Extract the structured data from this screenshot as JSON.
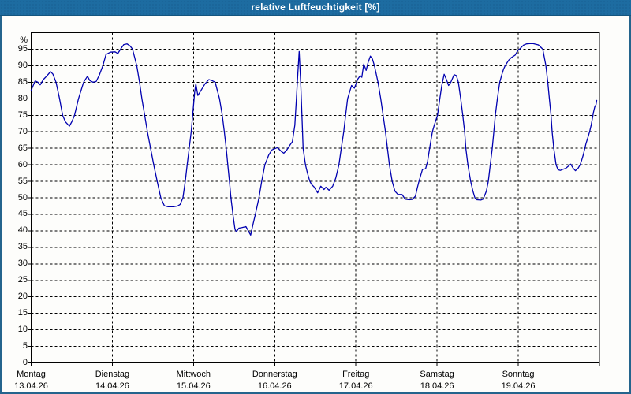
{
  "window": {
    "title": "relative Luftfeuchtigkeit [%]"
  },
  "colors": {
    "titlebar_bg": "#1d6ca1",
    "frame": "#24648d",
    "plot_bg": "#fdfdfb",
    "plot_border": "#000000",
    "grid": "#000000",
    "curve": "#0000b0",
    "label_text": "#000000",
    "title_text": "#ffffff"
  },
  "chart_data": {
    "type": "line",
    "title": "relative Luftfeuchtigkeit [%]",
    "ylabel_unit": "%",
    "ylim": [
      0,
      100
    ],
    "y_tick_step": 5,
    "y_tick_labels": [
      "0",
      "5",
      "10",
      "15",
      "20",
      "25",
      "30",
      "35",
      "40",
      "45",
      "50",
      "55",
      "60",
      "65",
      "70",
      "75",
      "80",
      "85",
      "90",
      "95"
    ],
    "x_range_days": [
      0,
      7
    ],
    "x_days": [
      {
        "name": "Montag",
        "date": "13.04.26"
      },
      {
        "name": "Dienstag",
        "date": "14.04.26"
      },
      {
        "name": "Mittwoch",
        "date": "15.04.26"
      },
      {
        "name": "Donnerstag",
        "date": "16.04.26"
      },
      {
        "name": "Freitag",
        "date": "17.04.26"
      },
      {
        "name": "Samstag",
        "date": "18.04.26"
      },
      {
        "name": "Sonntag",
        "date": "19.04.26"
      }
    ],
    "grid": "dashed",
    "legend": "none",
    "series": [
      {
        "name": "relative Luftfeuchtigkeit",
        "unit": "%",
        "color": "#0000b0",
        "points": [
          [
            0.0,
            82.5
          ],
          [
            0.049,
            85.4
          ],
          [
            0.083,
            85.0
          ],
          [
            0.112,
            84.2
          ],
          [
            0.15,
            85.8
          ],
          [
            0.189,
            86.8
          ],
          [
            0.238,
            88.2
          ],
          [
            0.267,
            87.5
          ],
          [
            0.306,
            85.0
          ],
          [
            0.35,
            80.0
          ],
          [
            0.388,
            75.0
          ],
          [
            0.422,
            73.0
          ],
          [
            0.471,
            71.7
          ],
          [
            0.5,
            73.0
          ],
          [
            0.534,
            75.0
          ],
          [
            0.583,
            80.0
          ],
          [
            0.646,
            85.0
          ],
          [
            0.694,
            86.8
          ],
          [
            0.723,
            85.5
          ],
          [
            0.762,
            85.0
          ],
          [
            0.801,
            85.2
          ],
          [
            0.84,
            87.2
          ],
          [
            0.883,
            90.0
          ],
          [
            0.922,
            93.4
          ],
          [
            0.976,
            94.1
          ],
          [
            1.034,
            94.2
          ],
          [
            1.068,
            93.7
          ],
          [
            1.102,
            95.0
          ],
          [
            1.141,
            96.4
          ],
          [
            1.18,
            96.6
          ],
          [
            1.218,
            96.0
          ],
          [
            1.248,
            95.0
          ],
          [
            1.301,
            90.0
          ],
          [
            1.335,
            85.0
          ],
          [
            1.364,
            80.0
          ],
          [
            1.398,
            75.0
          ],
          [
            1.432,
            70.0
          ],
          [
            1.471,
            65.0
          ],
          [
            1.51,
            60.0
          ],
          [
            1.553,
            55.0
          ],
          [
            1.597,
            50.0
          ],
          [
            1.641,
            47.6
          ],
          [
            1.684,
            47.3
          ],
          [
            1.752,
            47.3
          ],
          [
            1.801,
            47.5
          ],
          [
            1.835,
            48.0
          ],
          [
            1.869,
            50.0
          ],
          [
            1.898,
            55.0
          ],
          [
            1.922,
            60.0
          ],
          [
            1.947,
            65.0
          ],
          [
            1.971,
            70.0
          ],
          [
            1.99,
            75.0
          ],
          [
            2.014,
            82.0
          ],
          [
            2.029,
            84.5
          ],
          [
            2.053,
            81.0
          ],
          [
            2.092,
            82.5
          ],
          [
            2.141,
            84.5
          ],
          [
            2.189,
            85.8
          ],
          [
            2.228,
            85.5
          ],
          [
            2.267,
            85.0
          ],
          [
            2.32,
            80.0
          ],
          [
            2.354,
            75.0
          ],
          [
            2.379,
            70.0
          ],
          [
            2.403,
            65.0
          ],
          [
            2.422,
            60.0
          ],
          [
            2.442,
            55.0
          ],
          [
            2.461,
            50.0
          ],
          [
            2.485,
            45.0
          ],
          [
            2.51,
            40.5
          ],
          [
            2.529,
            39.7
          ],
          [
            2.558,
            40.8
          ],
          [
            2.597,
            41.0
          ],
          [
            2.646,
            41.3
          ],
          [
            2.675,
            40.0
          ],
          [
            2.704,
            38.7
          ],
          [
            2.733,
            42.0
          ],
          [
            2.762,
            45.0
          ],
          [
            2.806,
            50.0
          ],
          [
            2.84,
            55.0
          ],
          [
            2.879,
            60.0
          ],
          [
            2.927,
            63.0
          ],
          [
            2.966,
            64.5
          ],
          [
            3.034,
            65.2
          ],
          [
            3.083,
            64.0
          ],
          [
            3.112,
            63.5
          ],
          [
            3.15,
            64.5
          ],
          [
            3.189,
            66.0
          ],
          [
            3.218,
            67.0
          ],
          [
            3.248,
            72.0
          ],
          [
            3.267,
            80.0
          ],
          [
            3.286,
            88.0
          ],
          [
            3.301,
            94.3
          ],
          [
            3.32,
            85.0
          ],
          [
            3.335,
            75.0
          ],
          [
            3.35,
            65.0
          ],
          [
            3.379,
            60.0
          ],
          [
            3.403,
            57.5
          ],
          [
            3.432,
            55.0
          ],
          [
            3.456,
            54.0
          ],
          [
            3.485,
            53.3
          ],
          [
            3.529,
            51.5
          ],
          [
            3.568,
            53.5
          ],
          [
            3.607,
            52.5
          ],
          [
            3.631,
            53.2
          ],
          [
            3.67,
            52.3
          ],
          [
            3.714,
            53.5
          ],
          [
            3.752,
            56.0
          ],
          [
            3.791,
            60.0
          ],
          [
            3.82,
            65.0
          ],
          [
            3.85,
            70.0
          ],
          [
            3.874,
            75.0
          ],
          [
            3.898,
            80.0
          ],
          [
            3.946,
            84.0
          ],
          [
            3.981,
            83.2
          ],
          [
            4.024,
            86.0
          ],
          [
            4.053,
            87.0
          ],
          [
            4.073,
            86.5
          ],
          [
            4.097,
            90.5
          ],
          [
            4.126,
            88.6
          ],
          [
            4.15,
            91.0
          ],
          [
            4.179,
            92.9
          ],
          [
            4.204,
            92.0
          ],
          [
            4.228,
            90.0
          ],
          [
            4.272,
            85.0
          ],
          [
            4.306,
            80.0
          ],
          [
            4.335,
            75.0
          ],
          [
            4.364,
            70.0
          ],
          [
            4.388,
            65.0
          ],
          [
            4.413,
            60.0
          ],
          [
            4.447,
            55.0
          ],
          [
            4.481,
            52.0
          ],
          [
            4.519,
            51.0
          ],
          [
            4.568,
            51.0
          ],
          [
            4.607,
            49.6
          ],
          [
            4.655,
            49.4
          ],
          [
            4.694,
            49.5
          ],
          [
            4.733,
            50.5
          ],
          [
            4.757,
            53.0
          ],
          [
            4.777,
            55.0
          ],
          [
            4.82,
            58.6
          ],
          [
            4.859,
            58.8
          ],
          [
            4.883,
            61.0
          ],
          [
            4.908,
            65.0
          ],
          [
            4.942,
            70.0
          ],
          [
            4.966,
            72.0
          ],
          [
            5.005,
            75.0
          ],
          [
            5.034,
            80.0
          ],
          [
            5.058,
            84.0
          ],
          [
            5.087,
            87.4
          ],
          [
            5.112,
            86.0
          ],
          [
            5.141,
            84.0
          ],
          [
            5.17,
            85.0
          ],
          [
            5.209,
            87.3
          ],
          [
            5.238,
            87.0
          ],
          [
            5.262,
            85.0
          ],
          [
            5.291,
            80.0
          ],
          [
            5.316,
            75.0
          ],
          [
            5.34,
            70.0
          ],
          [
            5.354,
            65.0
          ],
          [
            5.379,
            60.0
          ],
          [
            5.413,
            55.0
          ],
          [
            5.442,
            52.0
          ],
          [
            5.466,
            50.0
          ],
          [
            5.49,
            49.4
          ],
          [
            5.539,
            49.3
          ],
          [
            5.568,
            49.6
          ],
          [
            5.607,
            52.0
          ],
          [
            5.631,
            55.0
          ],
          [
            5.655,
            60.0
          ],
          [
            5.68,
            65.0
          ],
          [
            5.699,
            70.0
          ],
          [
            5.718,
            75.0
          ],
          [
            5.743,
            80.0
          ],
          [
            5.772,
            85.0
          ],
          [
            5.801,
            87.6
          ],
          [
            5.82,
            89.0
          ],
          [
            5.839,
            90.0
          ],
          [
            5.883,
            91.7
          ],
          [
            5.917,
            92.5
          ],
          [
            5.961,
            93.2
          ],
          [
            5.995,
            94.6
          ],
          [
            6.024,
            95.2
          ],
          [
            6.063,
            96.2
          ],
          [
            6.102,
            96.6
          ],
          [
            6.141,
            96.7
          ],
          [
            6.18,
            96.7
          ],
          [
            6.218,
            96.5
          ],
          [
            6.248,
            96.3
          ],
          [
            6.301,
            95.0
          ],
          [
            6.34,
            90.0
          ],
          [
            6.364,
            85.0
          ],
          [
            6.383,
            80.0
          ],
          [
            6.403,
            75.0
          ],
          [
            6.417,
            70.0
          ],
          [
            6.437,
            65.0
          ],
          [
            6.466,
            60.0
          ],
          [
            6.49,
            58.5
          ],
          [
            6.519,
            58.3
          ],
          [
            6.544,
            58.6
          ],
          [
            6.583,
            58.9
          ],
          [
            6.612,
            59.5
          ],
          [
            6.646,
            60.2
          ],
          [
            6.675,
            59.0
          ],
          [
            6.704,
            58.2
          ],
          [
            6.738,
            59.0
          ],
          [
            6.762,
            60.0
          ],
          [
            6.782,
            61.5
          ],
          [
            6.801,
            63.0
          ],
          [
            6.82,
            65.0
          ],
          [
            6.835,
            66.5
          ],
          [
            6.854,
            68.0
          ],
          [
            6.879,
            70.0
          ],
          [
            6.898,
            72.0
          ],
          [
            6.913,
            74.0
          ],
          [
            6.927,
            76.0
          ],
          [
            6.942,
            77.5
          ],
          [
            6.957,
            78.2
          ],
          [
            6.966,
            79.5
          ]
        ]
      }
    ]
  }
}
